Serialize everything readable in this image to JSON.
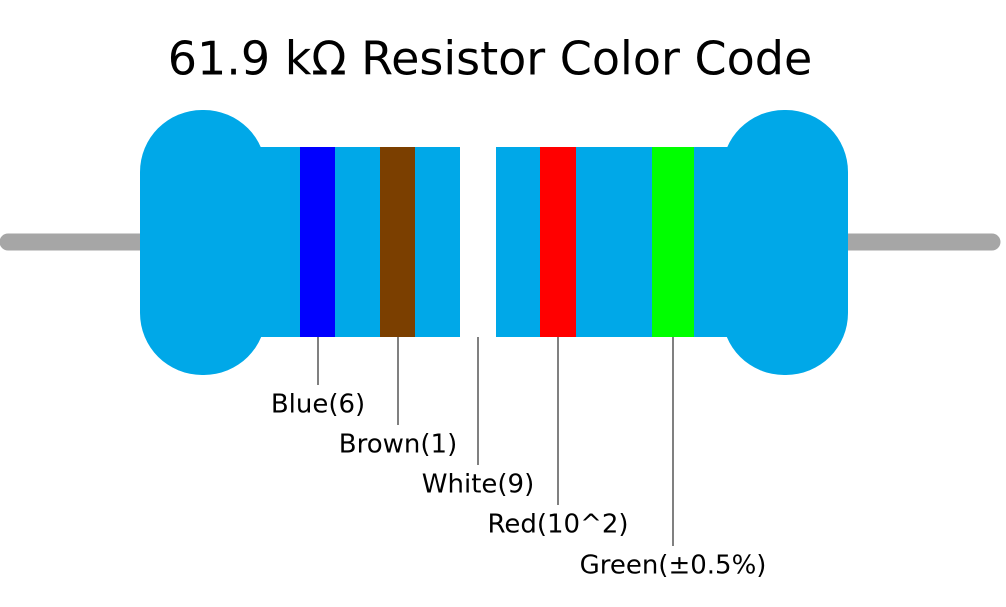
{
  "title": "61.9 kΩ Resistor Color Code",
  "bands": [
    {
      "label": "Blue(6)",
      "color": "#0000ff"
    },
    {
      "label": "Brown(1)",
      "color": "#7b3f00"
    },
    {
      "label": "White(9)",
      "color": "#ffffff"
    },
    {
      "label": "Red(10^2)",
      "color": "#ff0000"
    },
    {
      "label": "Green(±0.5%)",
      "color": "#00ff00"
    }
  ]
}
